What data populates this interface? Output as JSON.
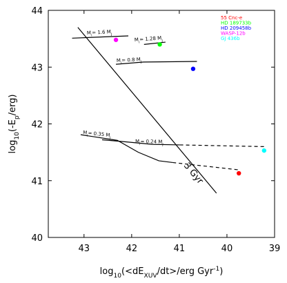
{
  "chart_data": {
    "type": "scatter",
    "xlabel": [
      {
        "t": "log"
      },
      {
        "t": "10",
        "s": "sub"
      },
      {
        "t": "(<dE"
      },
      {
        "t": "XUV",
        "s": "sub"
      },
      {
        "t": "/dt>/erg Gyr"
      },
      {
        "t": "-1",
        "s": "sup"
      },
      {
        "t": ")"
      }
    ],
    "ylabel": [
      {
        "t": "log"
      },
      {
        "t": "10",
        "s": "sub"
      },
      {
        "t": "(-E"
      },
      {
        "t": "p",
        "s": "sub"
      },
      {
        "t": "/erg)"
      }
    ],
    "xlim": [
      43.75,
      39
    ],
    "xticks": [
      43,
      42,
      41,
      40,
      39
    ],
    "ylim": [
      40,
      44
    ],
    "yticks": [
      40,
      41,
      42,
      43,
      44
    ],
    "series": [
      {
        "name": "55 Cnc-e",
        "color": "#ff0000",
        "x": [
          39.75
        ],
        "values": [
          41.13
        ]
      },
      {
        "name": "HD 189733b",
        "color": "#00ff00",
        "x": [
          41.41
        ],
        "values": [
          43.4
        ]
      },
      {
        "name": "HD 209458b",
        "color": "#0000ff",
        "x": [
          40.71
        ],
        "values": [
          42.97
        ]
      },
      {
        "name": "WASP-12b",
        "color": "#ff00ff",
        "x": [
          42.33
        ],
        "values": [
          43.48
        ]
      },
      {
        "name": "GJ 436b",
        "color": "#00ffff",
        "x": [
          39.22
        ],
        "values": [
          41.53
        ]
      }
    ],
    "lines": [
      {
        "x": [
          43.13,
          40.22
        ],
        "values": [
          43.7,
          40.78
        ],
        "dash": false
      },
      {
        "x": [
          43.25,
          42.07
        ],
        "values": [
          43.51,
          43.55
        ],
        "dash": false
      },
      {
        "x": [
          41.74,
          41.29
        ],
        "values": [
          43.4,
          43.44
        ],
        "dash": false
      },
      {
        "x": [
          42.33,
          41.75,
          40.63
        ],
        "values": [
          43.05,
          43.09,
          43.1
        ],
        "dash": false
      },
      {
        "x": [
          43.07,
          42.3,
          41.86,
          41.43,
          41.14
        ],
        "values": [
          41.81,
          41.71,
          41.5,
          41.35,
          41.32
        ],
        "dash": false
      },
      {
        "x": [
          41.14,
          39.75
        ],
        "values": [
          41.32,
          41.19
        ],
        "dash": true
      },
      {
        "x": [
          42.62,
          42.2,
          41.57,
          40.99
        ],
        "values": [
          41.72,
          41.69,
          41.64,
          41.63
        ],
        "dash": false
      },
      {
        "x": [
          40.99,
          39.22
        ],
        "values": [
          41.63,
          41.6
        ],
        "dash": true
      }
    ],
    "annotations": [
      [
        {
          "t": "M"
        },
        {
          "t": "i",
          "s": "sub"
        },
        {
          "t": "= 1.6 M"
        },
        {
          "t": "J",
          "s": "sub"
        }
      ],
      [
        {
          "t": "M"
        },
        {
          "t": "i",
          "s": "sub"
        },
        {
          "t": "= 1.28 M"
        },
        {
          "t": "J",
          "s": "sub"
        }
      ],
      [
        {
          "t": "M"
        },
        {
          "t": "i",
          "s": "sub"
        },
        {
          "t": "= 0.8 M"
        },
        {
          "t": "J",
          "s": "sub"
        }
      ],
      [
        {
          "t": "M"
        },
        {
          "t": "i",
          "s": "sub"
        },
        {
          "t": "= 0.35 M"
        },
        {
          "t": "J",
          "s": "sub"
        }
      ],
      [
        {
          "t": "M"
        },
        {
          "t": "i",
          "s": "sub"
        },
        {
          "t": "= 0.24 M"
        },
        {
          "t": "J",
          "s": "sub"
        }
      ],
      [
        {
          "t": "3 Gyr"
        }
      ]
    ]
  }
}
